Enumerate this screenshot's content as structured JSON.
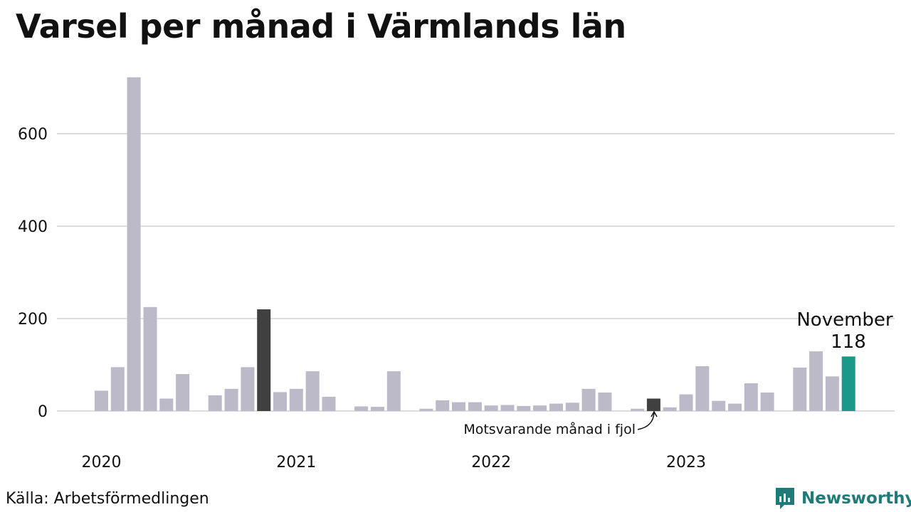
{
  "title": "Varsel per månad i Värmlands län",
  "source": "Källa: Arbetsförmedlingen",
  "brand": {
    "name": "Newsworthy",
    "icon": "newsworthy-logo-icon",
    "color": "#1f7a78"
  },
  "annotation": {
    "text": "Motsvarande månad i fjol"
  },
  "highlight": {
    "label": "November",
    "value": "118"
  },
  "colors": {
    "bar": "#bcbac8",
    "compare": "#404040",
    "current": "#1a9988",
    "grid": "#dddddd"
  },
  "chart_data": {
    "type": "bar",
    "ylim": [
      0,
      720
    ],
    "yticks": [
      0,
      200,
      400,
      600
    ],
    "year_labels": [
      {
        "label": "2020",
        "index": 0
      },
      {
        "label": "2021",
        "index": 12
      },
      {
        "label": "2022",
        "index": 24
      },
      {
        "label": "2023",
        "index": 36
      }
    ],
    "x": [
      "2020-01",
      "2020-02",
      "2020-03",
      "2020-04",
      "2020-05",
      "2020-06",
      "2020-07",
      "2020-08",
      "2020-09",
      "2020-10",
      "2020-11",
      "2020-12",
      "2021-01",
      "2021-02",
      "2021-03",
      "2021-04",
      "2021-05",
      "2021-06",
      "2021-07",
      "2021-08",
      "2021-09",
      "2021-10",
      "2021-11",
      "2021-12",
      "2022-01",
      "2022-02",
      "2022-03",
      "2022-04",
      "2022-05",
      "2022-06",
      "2022-07",
      "2022-08",
      "2022-09",
      "2022-10",
      "2022-11",
      "2022-12",
      "2023-01",
      "2023-02",
      "2023-03",
      "2023-04",
      "2023-05",
      "2023-06",
      "2023-07",
      "2023-08",
      "2023-09",
      "2023-10",
      "2023-11"
    ],
    "values": [
      44,
      95,
      722,
      225,
      27,
      80,
      0,
      34,
      48,
      95,
      220,
      41,
      48,
      86,
      31,
      0,
      10,
      9,
      86,
      0,
      5,
      23,
      19,
      19,
      12,
      13,
      11,
      12,
      16,
      18,
      48,
      40,
      0,
      5,
      27,
      8,
      36,
      97,
      22,
      16,
      60,
      40,
      0,
      94,
      129,
      75,
      118
    ],
    "compare_index": 10,
    "compare_index_2": 34,
    "current_index": 46
  }
}
